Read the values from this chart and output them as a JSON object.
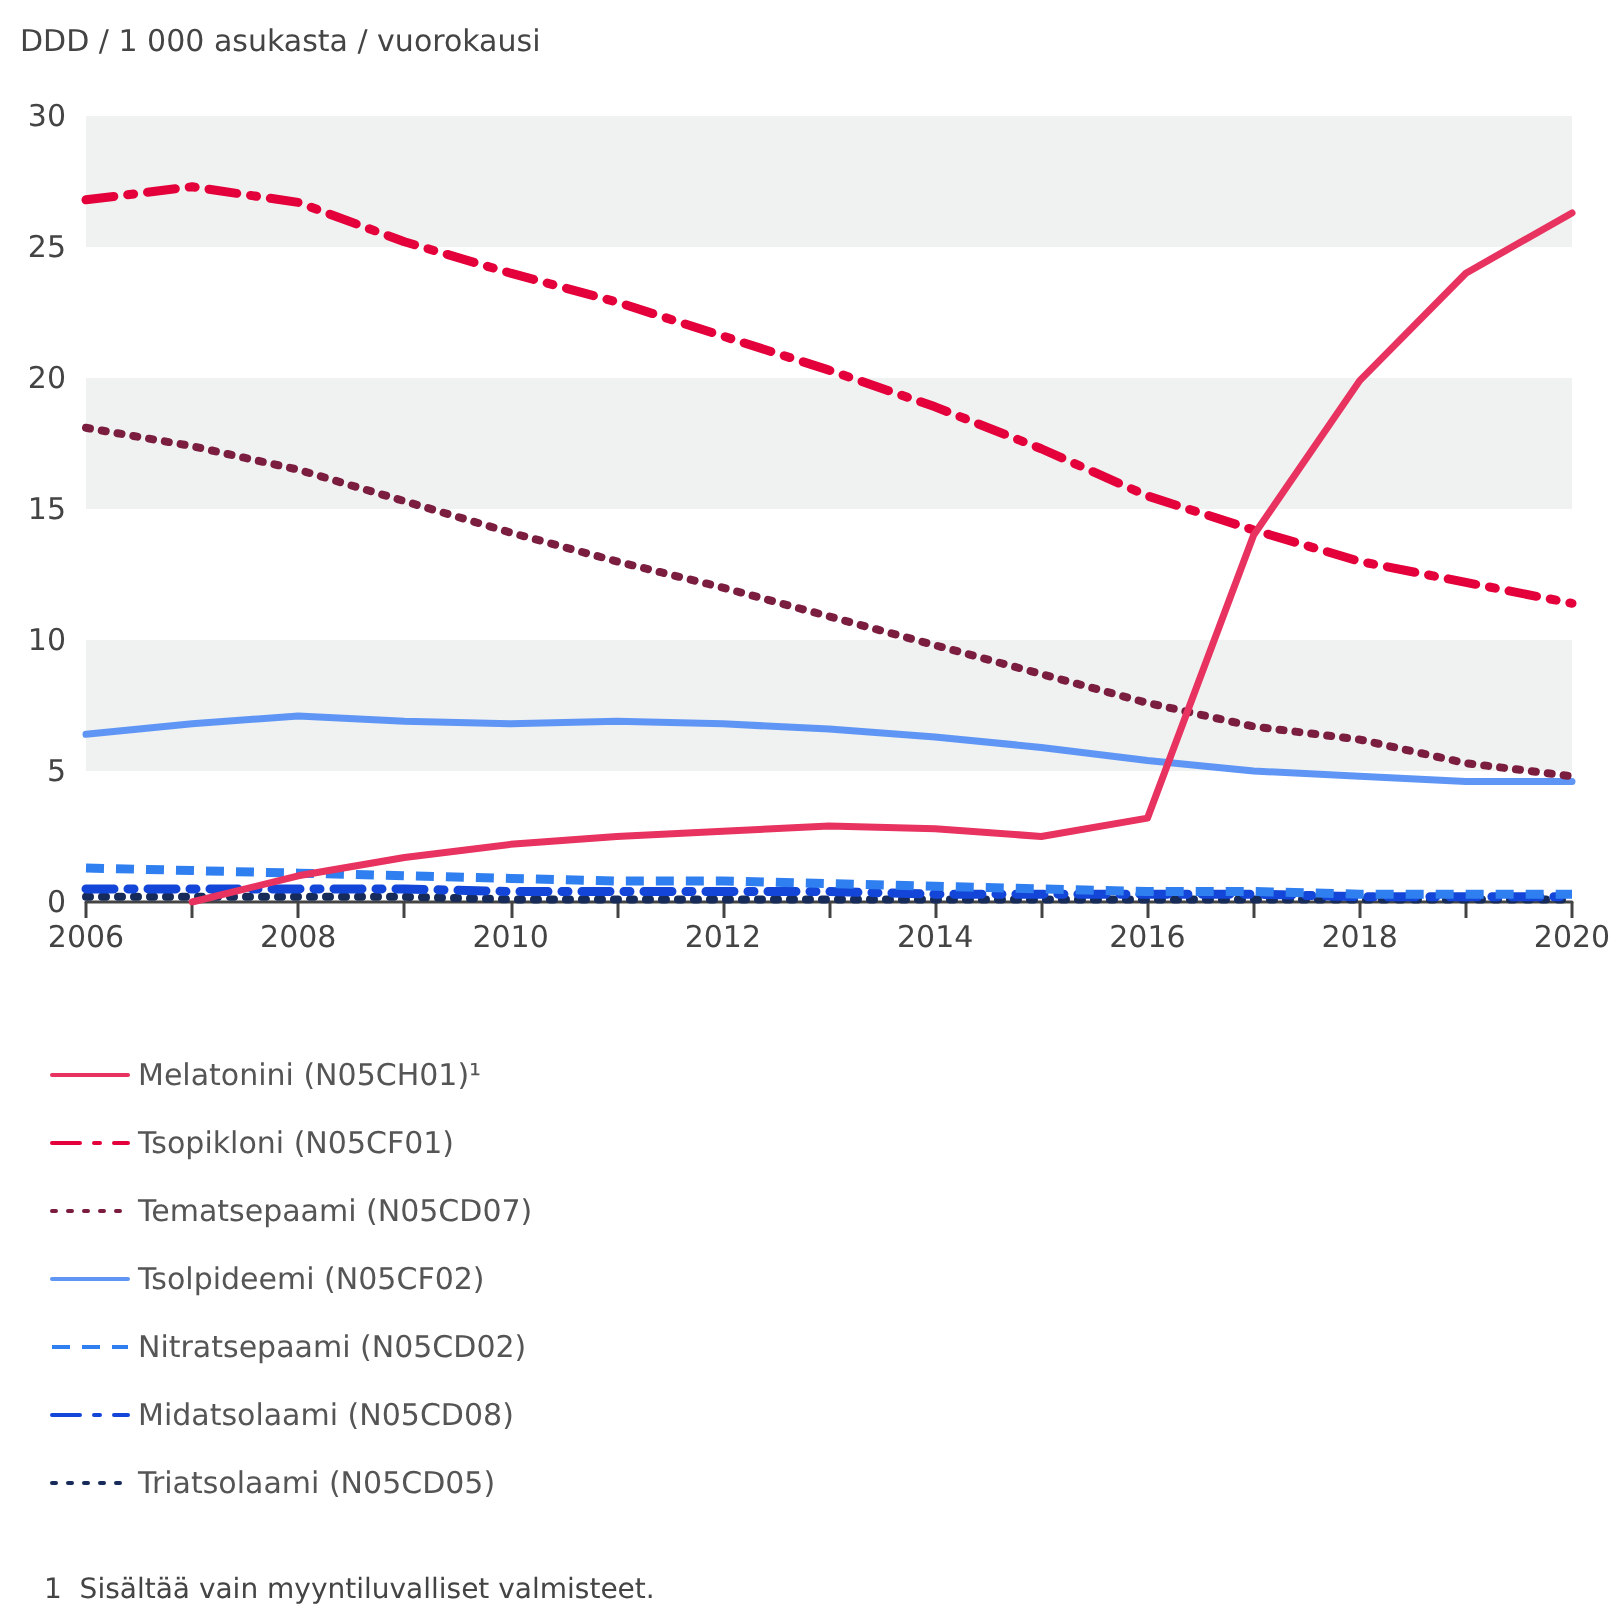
{
  "chart_data": {
    "type": "line",
    "ylabel": "DDD / 1 000 asukasta / vuorokausi",
    "x": [
      2006,
      2007,
      2008,
      2009,
      2010,
      2011,
      2012,
      2013,
      2014,
      2015,
      2016,
      2017,
      2018,
      2019,
      2020
    ],
    "series": [
      {
        "name": "Melatonini (N05CH01)¹",
        "color": "#e8325f",
        "line_style": "solid",
        "values": [
          null,
          0,
          1.0,
          1.7,
          2.2,
          2.5,
          2.7,
          2.9,
          2.8,
          2.5,
          3.2,
          14.0,
          19.9,
          24.0,
          26.3
        ]
      },
      {
        "name": "Tsopikloni (N05CF01)",
        "color": "#e4003a",
        "line_style": "dashdot",
        "values": [
          26.8,
          27.3,
          26.7,
          25.2,
          24.0,
          22.9,
          21.6,
          20.3,
          18.9,
          17.3,
          15.5,
          14.2,
          13.0,
          12.2,
          11.4
        ]
      },
      {
        "name": "Tematsepaami (N05CD07)",
        "color": "#7a1d3f",
        "line_style": "dotted",
        "values": [
          18.1,
          17.4,
          16.5,
          15.3,
          14.1,
          13.0,
          12.0,
          10.9,
          9.8,
          8.7,
          7.6,
          6.7,
          6.2,
          5.3,
          4.8
        ]
      },
      {
        "name": "Tsolpideemi (N05CF02)",
        "color": "#5f96f5",
        "line_style": "solid",
        "values": [
          6.4,
          6.8,
          7.1,
          6.9,
          6.8,
          6.9,
          6.8,
          6.6,
          6.3,
          5.9,
          5.4,
          5.0,
          4.8,
          4.6,
          4.6
        ]
      },
      {
        "name": "Nitratsepaami (N05CD02)",
        "color": "#2f7ff0",
        "line_style": "dashed",
        "values": [
          1.3,
          1.2,
          1.1,
          1.0,
          0.9,
          0.8,
          0.8,
          0.7,
          0.6,
          0.5,
          0.4,
          0.4,
          0.3,
          0.3,
          0.3
        ]
      },
      {
        "name": "Midatsolaami (N05CD08)",
        "color": "#1346d8",
        "line_style": "dashdot",
        "values": [
          0.5,
          0.5,
          0.5,
          0.5,
          0.4,
          0.4,
          0.4,
          0.4,
          0.3,
          0.3,
          0.3,
          0.3,
          0.2,
          0.2,
          0.2
        ]
      },
      {
        "name": "Triatsolaami (N05CD05)",
        "color": "#172b5a",
        "line_style": "dotted",
        "values": [
          0.2,
          0.2,
          0.2,
          0.2,
          0.1,
          0.1,
          0.1,
          0.1,
          0.1,
          0.1,
          0.1,
          0.1,
          0.1,
          0.1,
          0.1
        ]
      }
    ],
    "xlim": [
      2006,
      2020
    ],
    "xticks": [
      2006,
      {
        "value": 2007,
        "label": null
      },
      2008,
      {
        "value": 2009,
        "label": null
      },
      2010,
      {
        "value": 2011,
        "label": null
      },
      2012,
      {
        "value": 2013,
        "label": null
      },
      2014,
      {
        "value": 2015,
        "label": null
      },
      2016,
      {
        "value": 2017,
        "label": null
      },
      2018,
      {
        "value": 2019,
        "label": null
      },
      2020
    ],
    "ylim": [
      0,
      30
    ],
    "yticks": [
      0,
      5,
      10,
      15,
      20,
      25,
      30
    ],
    "bands": [
      {
        "axis": "y",
        "from": 5,
        "to": 10,
        "color": "#f0f1f1"
      },
      {
        "axis": "y",
        "from": 15,
        "to": 20,
        "color": "#f0f1f1"
      },
      {
        "axis": "y",
        "from": 25,
        "to": 30,
        "color": "#f0f1f1"
      }
    ],
    "legend": "bottom",
    "marker": "none",
    "annotations": [
      "1  Sisältää vain myyntiluvalliset valmisteet."
    ]
  }
}
